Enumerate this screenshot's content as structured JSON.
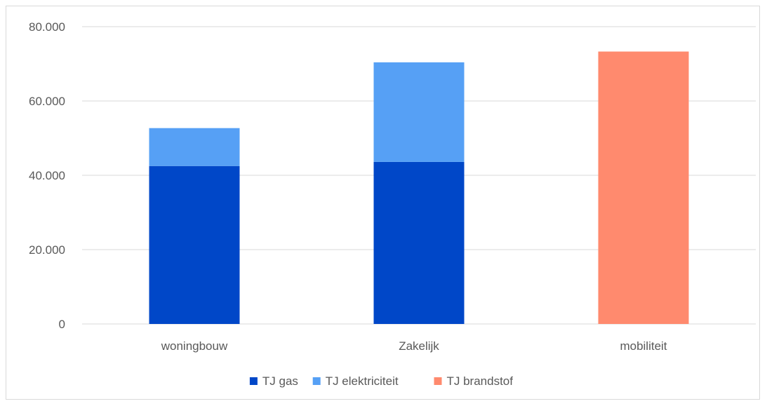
{
  "chart_data": {
    "type": "bar",
    "stacked": true,
    "title": "",
    "xlabel": "",
    "ylabel": "",
    "categories": [
      "woningbouw",
      "Zakelijk",
      "mobiliteit"
    ],
    "series": [
      {
        "name": "TJ gas",
        "values": [
          42500,
          43600,
          0
        ],
        "color": "#0047C8"
      },
      {
        "name": "TJ elektriciteit",
        "values": [
          10200,
          26800,
          0
        ],
        "color": "#56A0F5"
      },
      {
        "name": "TJ brandstof",
        "values": [
          0,
          0,
          73300
        ],
        "color": "#FF8A6E"
      }
    ],
    "ylim": [
      0,
      80000
    ],
    "yticks": [
      0,
      20000,
      40000,
      60000,
      80000
    ],
    "ytick_labels": [
      "0",
      "20.000",
      "40.000",
      "60.000",
      "80.000"
    ],
    "grid": true,
    "legend_position": "bottom"
  }
}
